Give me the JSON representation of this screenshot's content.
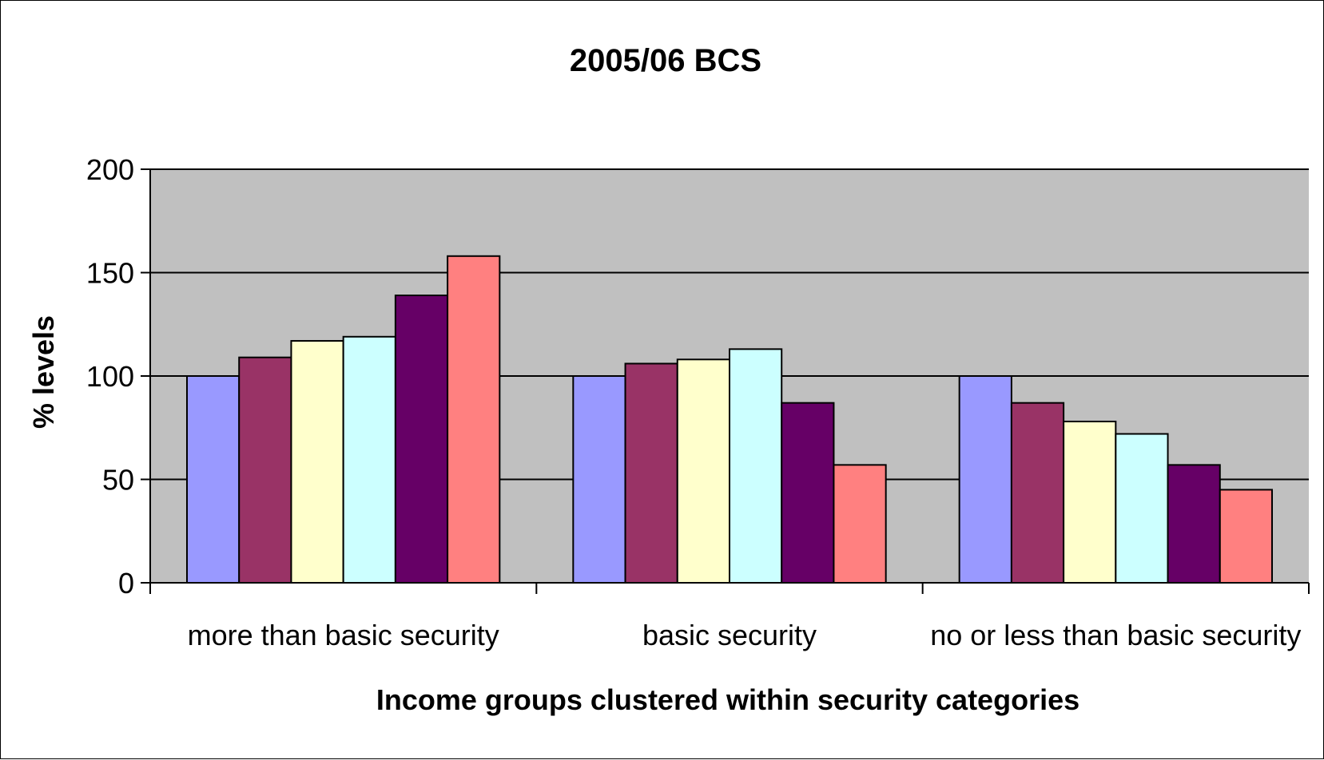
{
  "chart_data": {
    "type": "bar",
    "title": "2005/06 BCS",
    "xlabel": "Income groups clustered within security categories",
    "ylabel": "% levels",
    "categories": [
      "more than basic security",
      "basic security",
      "no or less than basic security"
    ],
    "ylim": [
      0,
      200
    ],
    "yticks": [
      0,
      50,
      100,
      150,
      200
    ],
    "grid": true,
    "legend": "none",
    "plot_background": "#C0C0C0",
    "series": [
      {
        "color": "#9999FF",
        "values": [
          100,
          100,
          100
        ]
      },
      {
        "color": "#993366",
        "values": [
          109,
          106,
          87
        ]
      },
      {
        "color": "#FFFFCC",
        "values": [
          117,
          108,
          78
        ]
      },
      {
        "color": "#CCFFFF",
        "values": [
          119,
          113,
          72
        ]
      },
      {
        "color": "#660066",
        "values": [
          139,
          87,
          57
        ]
      },
      {
        "color": "#FF8080",
        "values": [
          158,
          57,
          45
        ]
      }
    ]
  }
}
